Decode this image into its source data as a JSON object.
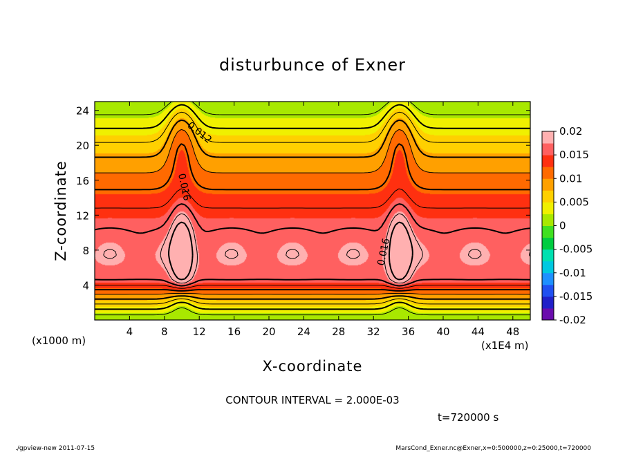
{
  "chart_data": {
    "type": "heatmap",
    "title": "disturbunce of Exner",
    "xlabel": "X-coordinate",
    "ylabel": "Z-coordinate",
    "x_unit_note": "(x1E4 m)",
    "y_unit_note": "(x1000 m)",
    "x_ticks": [
      "4",
      "8",
      "12",
      "16",
      "20",
      "24",
      "28",
      "32",
      "36",
      "40",
      "44",
      "48"
    ],
    "x_tick_values": [
      4,
      8,
      12,
      16,
      20,
      24,
      28,
      32,
      36,
      40,
      44,
      48
    ],
    "y_ticks": [
      "4",
      "8",
      "12",
      "16",
      "20",
      "24"
    ],
    "y_tick_values": [
      4,
      8,
      12,
      16,
      20,
      24
    ],
    "xlim": [
      0,
      50
    ],
    "ylim": [
      0,
      25
    ],
    "contour_interval_text": "CONTOUR INTERVAL = 2.000E-03",
    "contour_labels": [
      "0.012",
      "0.016",
      "0.016"
    ],
    "colorbar": {
      "labels": [
        "0.02",
        "0.015",
        "0.01",
        "0.005",
        "0",
        "-0.005",
        "-0.01",
        "-0.015",
        "-0.02"
      ],
      "values": [
        0.02,
        0.015,
        0.01,
        0.005,
        0,
        -0.005,
        -0.01,
        -0.015,
        -0.02
      ],
      "range": [
        -0.02,
        0.02
      ]
    },
    "time_label": "t=720000 s",
    "peaks_x": [
      10,
      35
    ],
    "peak_value": 0.02
  },
  "footer": {
    "left": "./gpview-new   2011-07-15",
    "right": "MarsCond_Exner.nc@Exner,x=0:500000,z=0:25000,t=720000"
  }
}
